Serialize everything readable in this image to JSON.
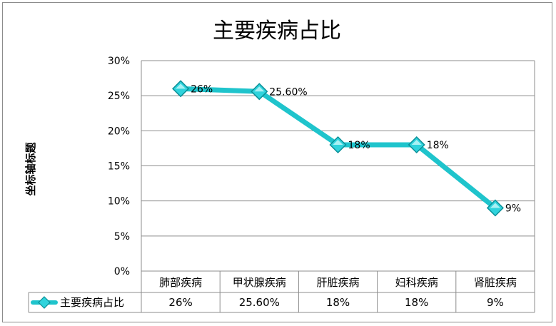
{
  "chart_data": {
    "type": "line",
    "title": "主要疾病占比",
    "ylabel": "坐标轴标题",
    "xlabel": "",
    "categories": [
      "肺部疾病",
      "甲状腺疾病",
      "肝脏疾病",
      "妇科疾病",
      "肾脏疾病"
    ],
    "series": [
      {
        "name": "主要疾病占比",
        "values": [
          26,
          25.6,
          18,
          18,
          9
        ],
        "labels": [
          "26%",
          "25.60%",
          "18%",
          "18%",
          "9%"
        ],
        "color": "#1fc4cc"
      }
    ],
    "ylim": [
      0,
      30
    ],
    "yticks": [
      "0%",
      "5%",
      "10%",
      "15%",
      "20%",
      "25%",
      "30%"
    ],
    "grid": true,
    "legend": "data-table",
    "data_table": true
  }
}
